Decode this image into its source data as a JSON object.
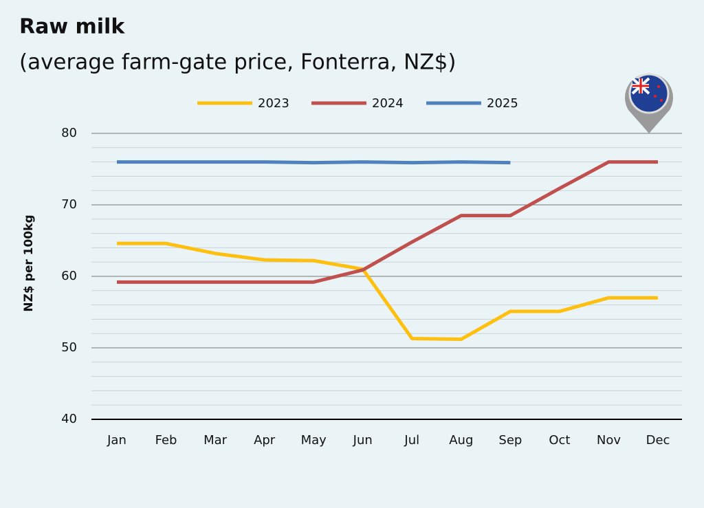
{
  "chart_data": {
    "type": "line",
    "title": "Raw milk",
    "subtitle": "(average farm-gate price, Fonterra, NZ$)",
    "y_label": "NZ$ per 100kg",
    "categories": [
      "Jan",
      "Feb",
      "Mar",
      "Apr",
      "May",
      "Jun",
      "Jul",
      "Aug",
      "Sep",
      "Oct",
      "Nov",
      "Dec"
    ],
    "series": [
      {
        "name": "2023",
        "color": "#fdbf10",
        "values": [
          64.6,
          64.6,
          63.2,
          62.3,
          62.2,
          61.0,
          51.3,
          51.2,
          55.1,
          55.1,
          57.0,
          57.0
        ]
      },
      {
        "name": "2024",
        "color": "#c0504d",
        "values": [
          59.2,
          59.2,
          59.2,
          59.2,
          59.2,
          60.9,
          64.8,
          68.5,
          68.5,
          72.3,
          76.0,
          76.0
        ]
      },
      {
        "name": "2025",
        "color": "#4f81bd",
        "values": [
          76.0,
          76.0,
          76.0,
          76.0,
          75.9,
          76.0,
          75.9,
          76.0,
          75.9,
          null,
          null,
          null
        ]
      }
    ],
    "ylim": [
      40,
      80
    ],
    "yticks": [
      40,
      50,
      60,
      70,
      80
    ],
    "minor_yticks": [
      42,
      44,
      46,
      48,
      52,
      54,
      56,
      58,
      62,
      64,
      66,
      68,
      72,
      74,
      76,
      78
    ],
    "grid": true,
    "legend": "top"
  }
}
